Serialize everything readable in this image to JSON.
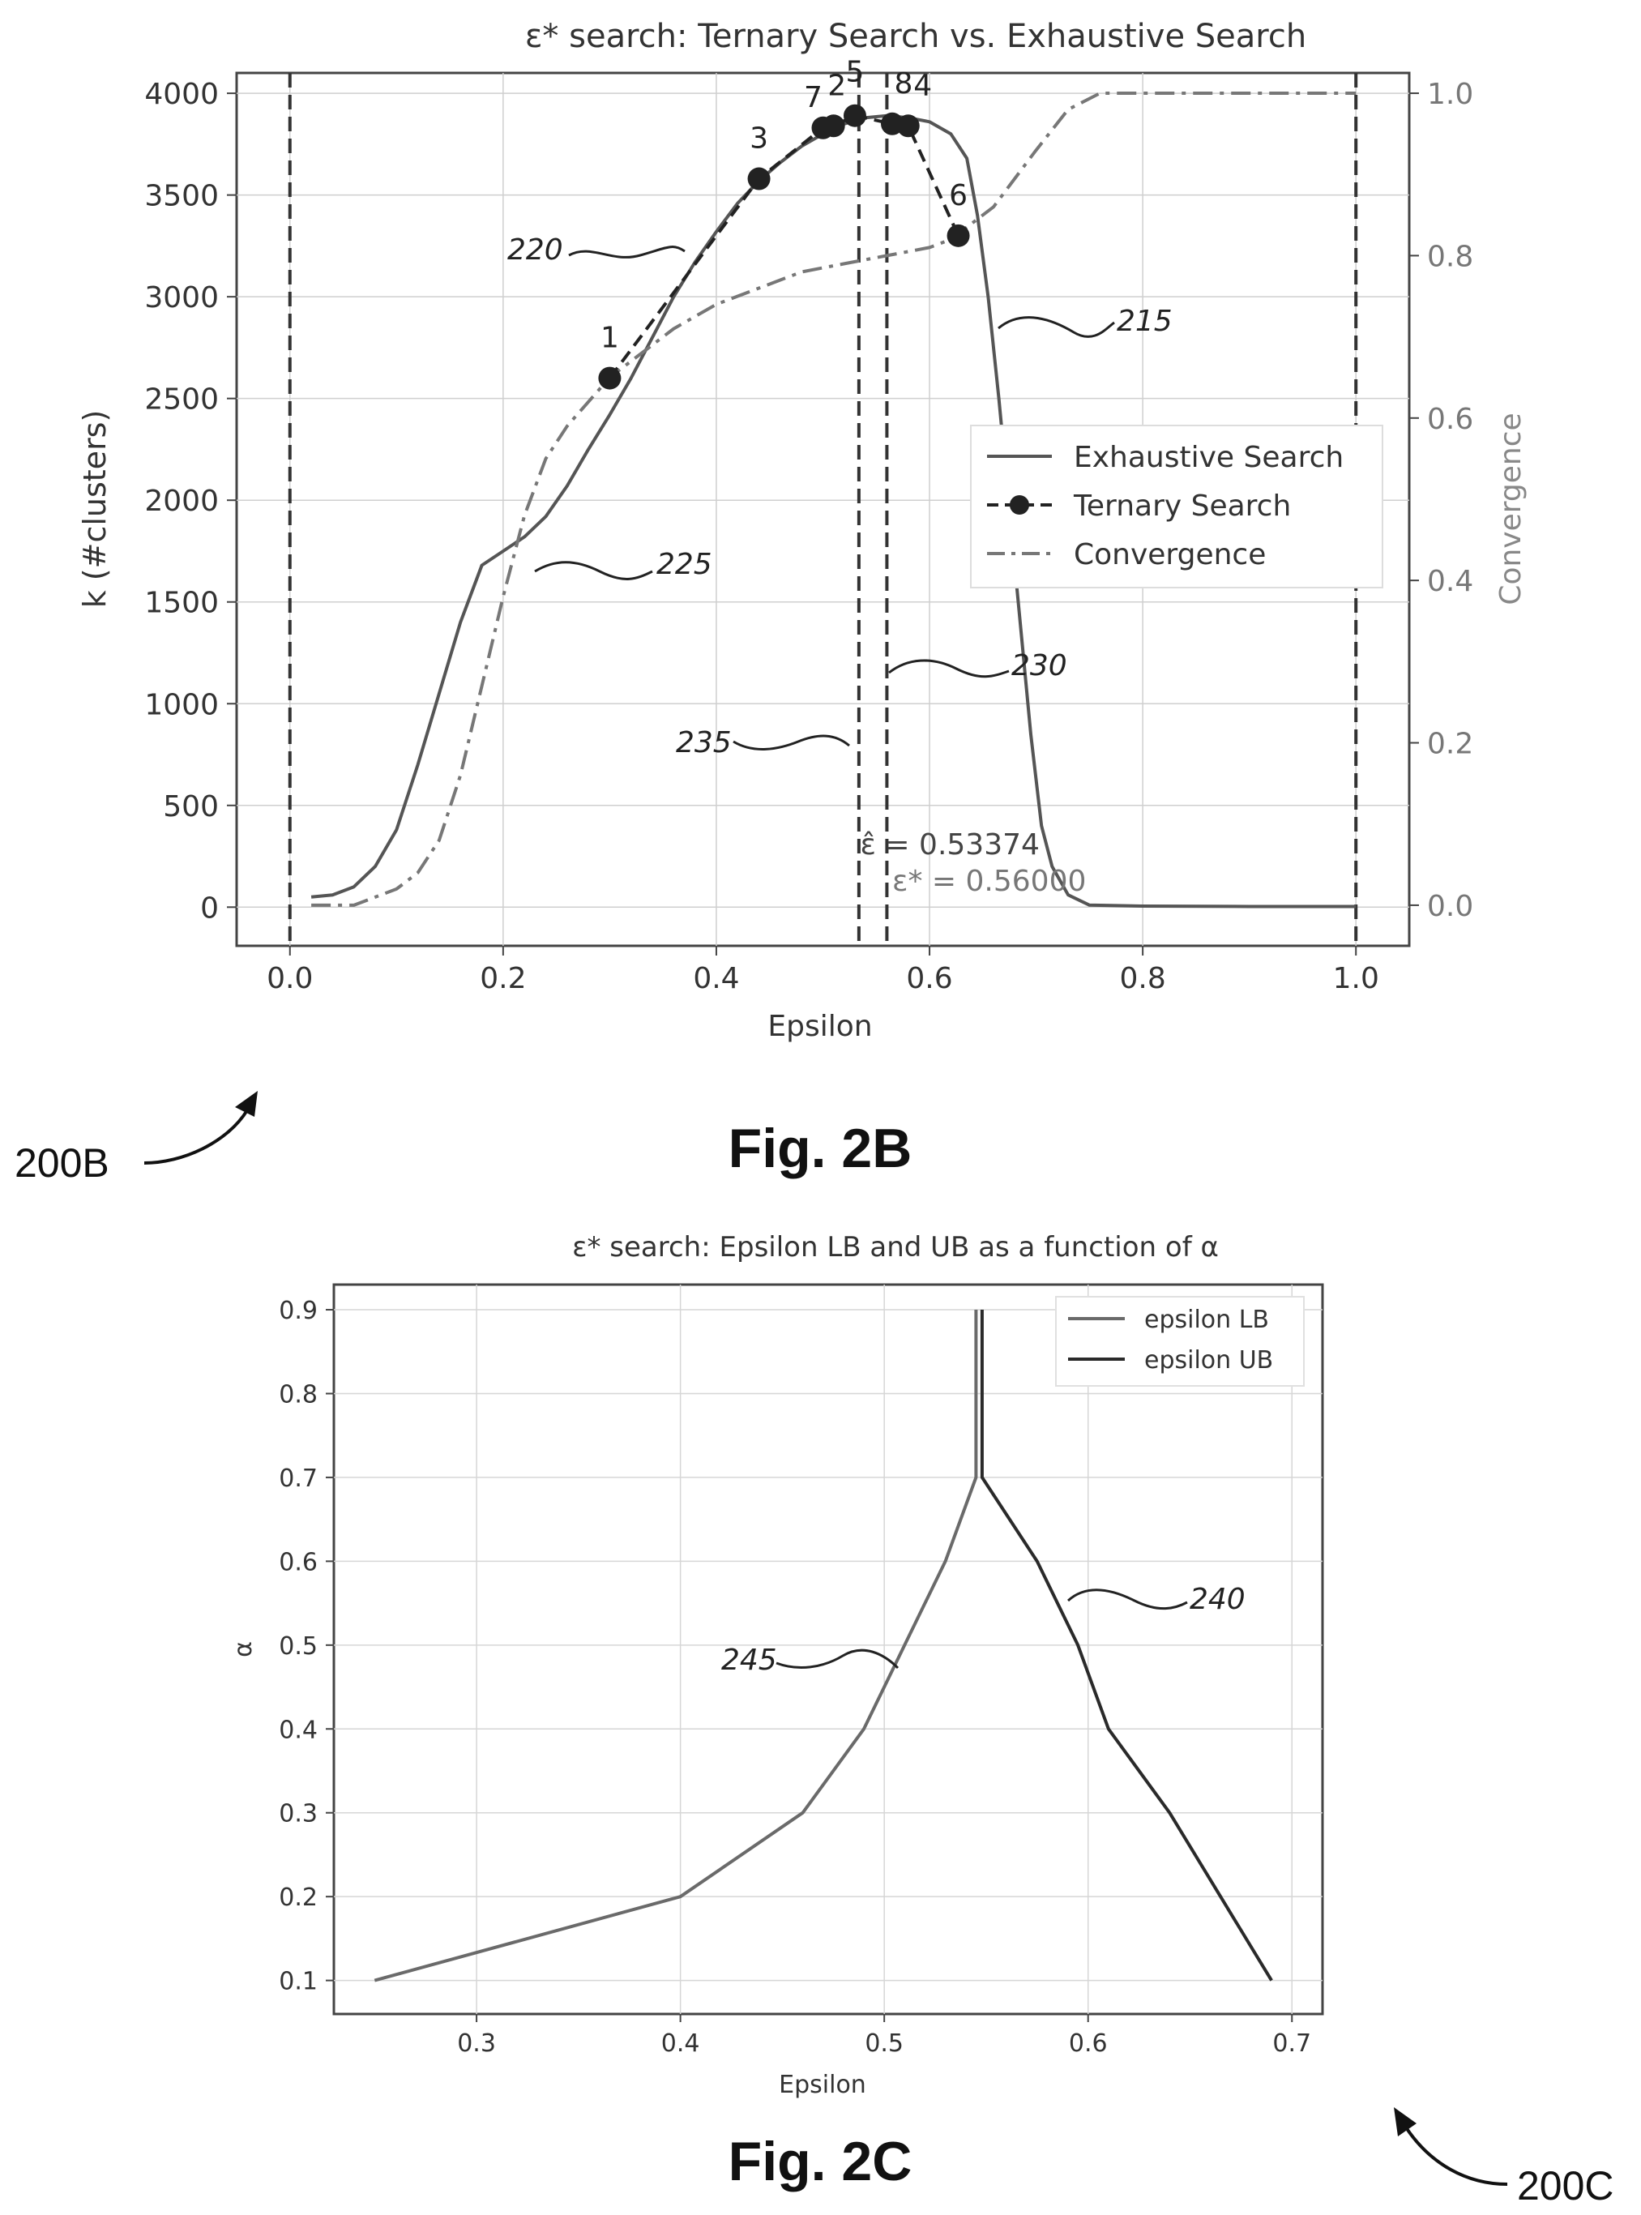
{
  "figures": [
    {
      "caption": "Fig. 2B",
      "ref": "200B"
    },
    {
      "caption": "Fig. 2C",
      "ref": "200C"
    }
  ],
  "chart_data": [
    {
      "id": "fig2b",
      "type": "line",
      "title": "ε* search: Ternary Search vs. Exhaustive Search",
      "xlabel": "Epsilon",
      "ylabel": "k (#clusters)",
      "y2label": "Convergence",
      "xlim": [
        -0.05,
        1.05
      ],
      "ylim": [
        -190,
        4100
      ],
      "y2lim": [
        -0.05,
        1.025
      ],
      "xticks": [
        "0.0",
        "0.2",
        "0.4",
        "0.6",
        "0.8",
        "1.0"
      ],
      "xtick_values": [
        0,
        0.2,
        0.4,
        0.6,
        0.8,
        1.0
      ],
      "yticks": [
        "0",
        "500",
        "1000",
        "1500",
        "2000",
        "2500",
        "3000",
        "3500",
        "4000"
      ],
      "ytick_values": [
        0,
        500,
        1000,
        1500,
        2000,
        2500,
        3000,
        3500,
        4000
      ],
      "y2ticks": [
        "0.0",
        "0.2",
        "0.4",
        "0.6",
        "0.8",
        "1.0"
      ],
      "y2tick_values": [
        0,
        0.2,
        0.4,
        0.6,
        0.8,
        1.0
      ],
      "grid": true,
      "legend_position": "center-right",
      "legend": [
        "Exhaustive Search",
        "Ternary Search",
        "Convergence"
      ],
      "series": [
        {
          "name": "Exhaustive Search",
          "style": "solid",
          "color": "#555555",
          "points": [
            [
              0.02,
              50
            ],
            [
              0.04,
              60
            ],
            [
              0.06,
              100
            ],
            [
              0.08,
              200
            ],
            [
              0.1,
              380
            ],
            [
              0.12,
              700
            ],
            [
              0.14,
              1050
            ],
            [
              0.16,
              1400
            ],
            [
              0.18,
              1680
            ],
            [
              0.2,
              1750
            ],
            [
              0.22,
              1820
            ],
            [
              0.24,
              1920
            ],
            [
              0.26,
              2070
            ],
            [
              0.28,
              2250
            ],
            [
              0.3,
              2420
            ],
            [
              0.32,
              2600
            ],
            [
              0.34,
              2800
            ],
            [
              0.36,
              3000
            ],
            [
              0.38,
              3170
            ],
            [
              0.4,
              3320
            ],
            [
              0.42,
              3460
            ],
            [
              0.44,
              3570
            ],
            [
              0.46,
              3660
            ],
            [
              0.48,
              3740
            ],
            [
              0.5,
              3800
            ],
            [
              0.52,
              3850
            ],
            [
              0.54,
              3880
            ],
            [
              0.56,
              3890
            ],
            [
              0.58,
              3880
            ],
            [
              0.6,
              3860
            ],
            [
              0.62,
              3800
            ],
            [
              0.635,
              3680
            ],
            [
              0.645,
              3400
            ],
            [
              0.655,
              3000
            ],
            [
              0.665,
              2500
            ],
            [
              0.675,
              1950
            ],
            [
              0.685,
              1400
            ],
            [
              0.695,
              850
            ],
            [
              0.705,
              400
            ],
            [
              0.715,
              200
            ],
            [
              0.73,
              60
            ],
            [
              0.75,
              10
            ],
            [
              0.8,
              5
            ],
            [
              0.9,
              3
            ],
            [
              1.0,
              3
            ]
          ]
        },
        {
          "name": "Ternary Search",
          "style": "dashed-markers",
          "color": "#222222",
          "points": [
            [
              0.3,
              2600
            ],
            [
              0.44,
              3580
            ],
            [
              0.5,
              3830
            ],
            [
              0.51,
              3840
            ],
            [
              0.53,
              3890
            ],
            [
              0.565,
              3850
            ],
            [
              0.58,
              3840
            ],
            [
              0.627,
              3300
            ]
          ],
          "point_labels": [
            "1",
            "3",
            "7",
            "2",
            "5",
            "8",
            "4",
            "6"
          ]
        },
        {
          "name": "Convergence",
          "axis": "right",
          "style": "dash-dot",
          "color": "#777777",
          "points": [
            [
              0.02,
              0.0
            ],
            [
              0.06,
              0.0
            ],
            [
              0.1,
              0.02
            ],
            [
              0.12,
              0.04
            ],
            [
              0.14,
              0.08
            ],
            [
              0.16,
              0.16
            ],
            [
              0.18,
              0.27
            ],
            [
              0.2,
              0.38
            ],
            [
              0.22,
              0.48
            ],
            [
              0.24,
              0.55
            ],
            [
              0.26,
              0.59
            ],
            [
              0.28,
              0.62
            ],
            [
              0.3,
              0.65
            ],
            [
              0.33,
              0.68
            ],
            [
              0.36,
              0.71
            ],
            [
              0.4,
              0.74
            ],
            [
              0.44,
              0.76
            ],
            [
              0.48,
              0.78
            ],
            [
              0.52,
              0.79
            ],
            [
              0.56,
              0.8
            ],
            [
              0.6,
              0.81
            ],
            [
              0.62,
              0.82
            ],
            [
              0.66,
              0.86
            ],
            [
              0.7,
              0.93
            ],
            [
              0.73,
              0.98
            ],
            [
              0.76,
              1.0
            ],
            [
              0.8,
              1.0
            ],
            [
              1.0,
              1.0
            ]
          ]
        }
      ],
      "vlines": [
        {
          "x": 0.0,
          "style": "dashed"
        },
        {
          "x": 0.53374,
          "style": "dashed"
        },
        {
          "x": 0.56,
          "style": "dashed"
        },
        {
          "x": 1.0,
          "style": "dashed"
        }
      ],
      "annotations": [
        {
          "text": "ε̂ = 0.53374",
          "x": 0.535,
          "y": 260
        },
        {
          "text": "ε* = 0.56000",
          "x": 0.565,
          "y": 80
        }
      ],
      "callouts": [
        {
          "label": "215"
        },
        {
          "label": "220"
        },
        {
          "label": "225"
        },
        {
          "label": "230"
        },
        {
          "label": "235"
        }
      ]
    },
    {
      "id": "fig2c",
      "type": "line",
      "title": "ε* search: Epsilon LB and UB as a function of α",
      "xlabel": "Epsilon",
      "ylabel": "α",
      "xlim": [
        0.23,
        0.715
      ],
      "ylim": [
        0.06,
        0.93
      ],
      "xticks": [
        "0.3",
        "0.4",
        "0.5",
        "0.6",
        "0.7"
      ],
      "xtick_values": [
        0.3,
        0.4,
        0.5,
        0.6,
        0.7
      ],
      "yticks": [
        "0.1",
        "0.2",
        "0.3",
        "0.4",
        "0.5",
        "0.6",
        "0.7",
        "0.8",
        "0.9"
      ],
      "ytick_values": [
        0.1,
        0.2,
        0.3,
        0.4,
        0.5,
        0.6,
        0.7,
        0.8,
        0.9
      ],
      "grid": true,
      "legend_position": "top-right",
      "legend": [
        "epsilon LB",
        "epsilon UB"
      ],
      "series": [
        {
          "name": "epsilon LB",
          "color": "#6a6a6a",
          "points": [
            [
              0.25,
              0.1
            ],
            [
              0.4,
              0.2
            ],
            [
              0.46,
              0.3
            ],
            [
              0.49,
              0.4
            ],
            [
              0.51,
              0.5
            ],
            [
              0.53,
              0.6
            ],
            [
              0.545,
              0.7
            ],
            [
              0.545,
              0.8
            ],
            [
              0.545,
              0.9
            ]
          ]
        },
        {
          "name": "epsilon UB",
          "color": "#2a2a2a",
          "points": [
            [
              0.69,
              0.1
            ],
            [
              0.665,
              0.2
            ],
            [
              0.64,
              0.3
            ],
            [
              0.61,
              0.4
            ],
            [
              0.595,
              0.5
            ],
            [
              0.575,
              0.6
            ],
            [
              0.548,
              0.7
            ],
            [
              0.548,
              0.8
            ],
            [
              0.548,
              0.9
            ]
          ]
        }
      ],
      "callouts": [
        {
          "label": "240"
        },
        {
          "label": "245"
        }
      ]
    }
  ]
}
